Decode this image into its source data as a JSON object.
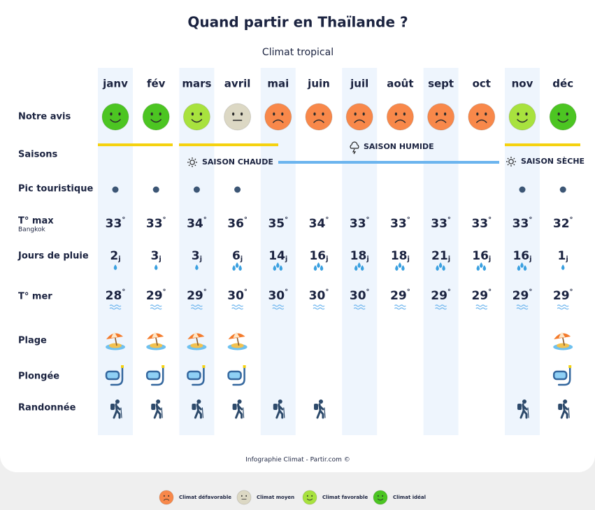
{
  "title": "Quand partir en Thaïlande ?",
  "subtitle": "Climat tropical",
  "row_labels": {
    "avis": "Notre avis",
    "saisons": "Saisons",
    "pic": "Pic touristique",
    "tmax": "T° max",
    "tmax_note": "Bangkok",
    "pluie": "Jours de pluie",
    "mer": "T° mer",
    "plage": "Plage",
    "plongee": "Plongée",
    "randonnee": "Randonnée"
  },
  "units": {
    "degree": "°",
    "days": "j"
  },
  "seasons": [
    "SAISON CHAUDE",
    "SAISON HUMIDE",
    "SAISON SÈCHE"
  ],
  "months": [
    {
      "name": "janv",
      "avis": "Climat idéal",
      "pic": true,
      "tmax": 33,
      "pluie": 2,
      "mer": 28,
      "plage": true,
      "plongee": true,
      "randonnee": true
    },
    {
      "name": "fév",
      "avis": "Climat idéal",
      "pic": true,
      "tmax": 33,
      "pluie": 3,
      "mer": 29,
      "plage": true,
      "plongee": true,
      "randonnee": true
    },
    {
      "name": "mars",
      "avis": "Climat favorable",
      "pic": true,
      "tmax": 34,
      "pluie": 3,
      "mer": 29,
      "plage": true,
      "plongee": true,
      "randonnee": true
    },
    {
      "name": "avril",
      "avis": "Climat moyen",
      "pic": true,
      "tmax": 36,
      "pluie": 6,
      "mer": 30,
      "plage": true,
      "plongee": true,
      "randonnee": true
    },
    {
      "name": "mai",
      "avis": "Climat défavorable",
      "pic": false,
      "tmax": 35,
      "pluie": 14,
      "mer": 30,
      "plage": false,
      "plongee": false,
      "randonnee": true
    },
    {
      "name": "juin",
      "avis": "Climat défavorable",
      "pic": false,
      "tmax": 34,
      "pluie": 16,
      "mer": 30,
      "plage": false,
      "plongee": false,
      "randonnee": true
    },
    {
      "name": "juil",
      "avis": "Climat défavorable",
      "pic": false,
      "tmax": 33,
      "pluie": 18,
      "mer": 30,
      "plage": false,
      "plongee": false,
      "randonnee": false
    },
    {
      "name": "août",
      "avis": "Climat défavorable",
      "pic": false,
      "tmax": 33,
      "pluie": 18,
      "mer": 29,
      "plage": false,
      "plongee": false,
      "randonnee": false
    },
    {
      "name": "sept",
      "avis": "Climat défavorable",
      "pic": false,
      "tmax": 33,
      "pluie": 21,
      "mer": 29,
      "plage": false,
      "plongee": false,
      "randonnee": false
    },
    {
      "name": "oct",
      "avis": "Climat défavorable",
      "pic": false,
      "tmax": 33,
      "pluie": 16,
      "mer": 29,
      "plage": false,
      "plongee": false,
      "randonnee": false
    },
    {
      "name": "nov",
      "avis": "Climat favorable",
      "pic": true,
      "tmax": 33,
      "pluie": 16,
      "mer": 29,
      "plage": false,
      "plongee": false,
      "randonnee": true
    },
    {
      "name": "déc",
      "avis": "Climat idéal",
      "pic": true,
      "tmax": 32,
      "pluie": 1,
      "mer": 29,
      "plage": true,
      "plongee": true,
      "randonnee": true
    }
  ],
  "legend": [
    {
      "label": "Climat défavorable",
      "color": "#f8884a"
    },
    {
      "label": "Climat moyen",
      "color": "#dcd8c4"
    },
    {
      "label": "Climat favorable",
      "color": "#a8e23e"
    },
    {
      "label": "Climat idéal",
      "color": "#4cc522"
    }
  ],
  "footer": "Infographie Climat - Partir.com ©"
}
